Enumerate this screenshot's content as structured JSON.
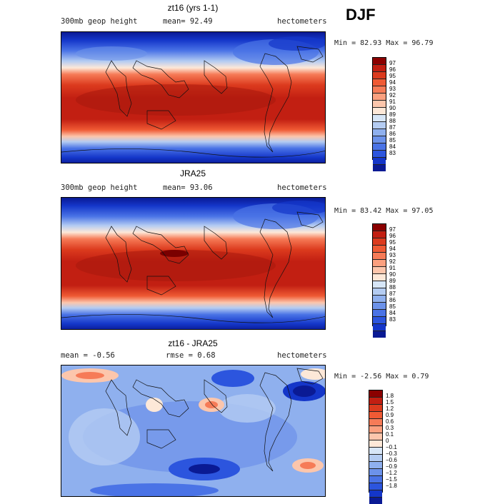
{
  "season": "DJF",
  "panels": [
    {
      "title": "zt16 (yrs 1-1)",
      "left_label": "300mb geop height",
      "mean_label": "mean=  92.49",
      "units": "hectometers",
      "minmax": "Min =  82.93 Max =  96.79",
      "colorbar": {
        "colors": [
          "#8b0000",
          "#c21f12",
          "#dc3b1e",
          "#ef5a34",
          "#f67b57",
          "#fba07f",
          "#fcc6ac",
          "#fde8d8",
          "#d7e6f7",
          "#b4ccf2",
          "#8fb0ee",
          "#6c92ea",
          "#4a73e6",
          "#2c55de",
          "#1436c9",
          "#0a1a94"
        ],
        "labels": [
          "97",
          "96",
          "95",
          "94",
          "93",
          "92",
          "91",
          "90",
          "89",
          "88",
          "87",
          "86",
          "85",
          "84",
          "83"
        ]
      }
    },
    {
      "title": "JRA25",
      "left_label": "300mb geop height",
      "mean_label": "mean=  93.06",
      "units": "hectometers",
      "minmax": "Min =  83.42 Max =  97.05",
      "colorbar": {
        "colors": [
          "#8b0000",
          "#c21f12",
          "#dc3b1e",
          "#ef5a34",
          "#f67b57",
          "#fba07f",
          "#fcc6ac",
          "#fde8d8",
          "#d7e6f7",
          "#b4ccf2",
          "#8fb0ee",
          "#6c92ea",
          "#4a73e6",
          "#2c55de",
          "#1436c9",
          "#0a1a94"
        ],
        "labels": [
          "97",
          "96",
          "95",
          "94",
          "93",
          "92",
          "91",
          "90",
          "89",
          "88",
          "87",
          "86",
          "85",
          "84",
          "83"
        ]
      }
    },
    {
      "title": "zt16 - JRA25",
      "left_label": "mean =  -0.56",
      "mean_label": "rmse =   0.68",
      "units": "hectometers",
      "minmax": "Min =  -2.56 Max =   0.79",
      "colorbar": {
        "colors": [
          "#8b0000",
          "#c21f12",
          "#dc3b1e",
          "#ef5a34",
          "#f67b57",
          "#fba07f",
          "#fcc6ac",
          "#fde8d8",
          "#d7e6f7",
          "#b4ccf2",
          "#8fb0ee",
          "#6c92ea",
          "#4a73e6",
          "#2c55de",
          "#1436c9",
          "#0a1a94"
        ],
        "labels": [
          "1.8",
          "1.5",
          "1.2",
          "0.9",
          "0.6",
          "0.3",
          "0.1",
          "0",
          "−0.1",
          "−0.3",
          "−0.6",
          "−0.9",
          "−1.2",
          "−1.5",
          "−1.8"
        ]
      }
    }
  ]
}
